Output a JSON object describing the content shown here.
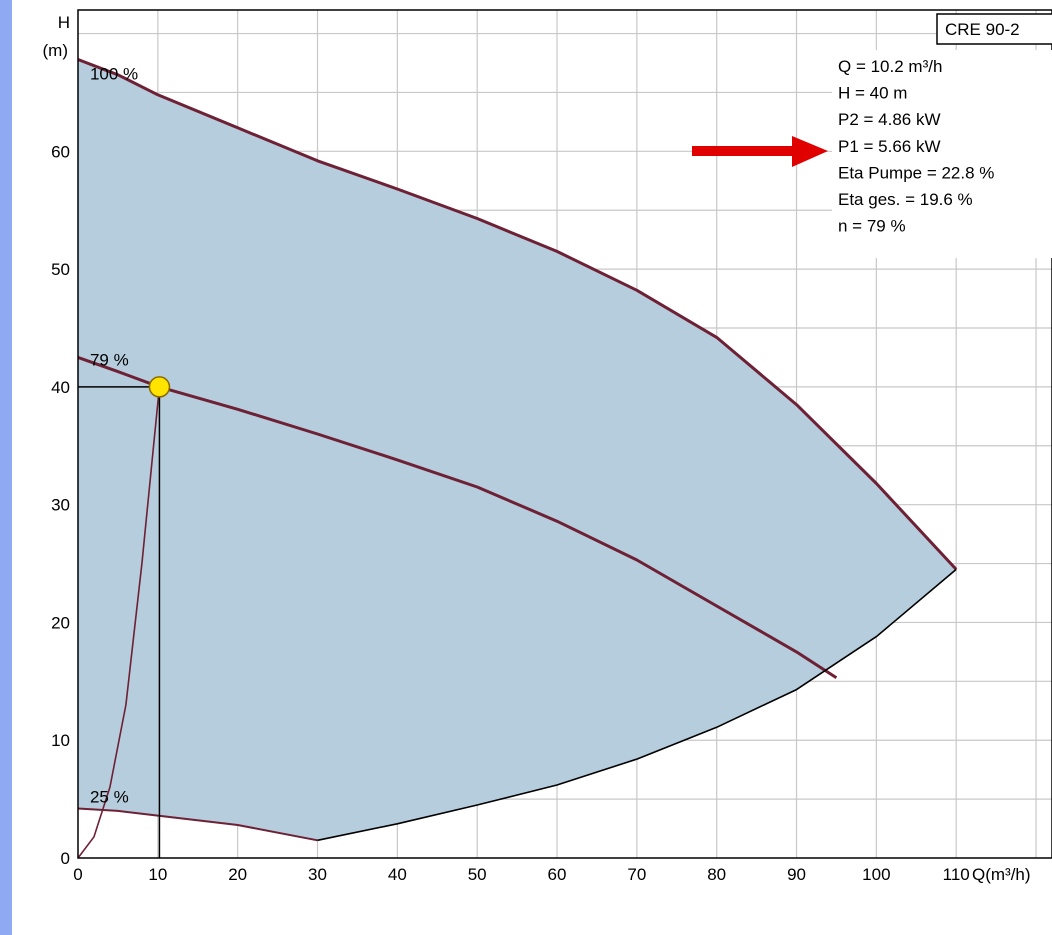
{
  "chart_data": {
    "type": "line",
    "title": "CRE 90-2",
    "ylabel_line1": "H",
    "ylabel_line2": "(m)",
    "xlabel": "Q(m³/h)",
    "xlim": [
      0,
      122
    ],
    "ylim": [
      0,
      72
    ],
    "x_ticks": [
      "0",
      "10",
      "20",
      "30",
      "40",
      "50",
      "60",
      "70",
      "80",
      "90",
      "100",
      "110"
    ],
    "y_ticks": [
      "0",
      "10",
      "20",
      "30",
      "40",
      "50",
      "60"
    ],
    "grid": true,
    "series": [
      {
        "name": "100 %",
        "x": [
          0,
          5,
          10,
          20,
          30,
          40,
          50,
          60,
          70,
          80,
          90,
          100,
          110
        ],
        "y": [
          67.8,
          66.5,
          64.8,
          62.0,
          59.2,
          56.8,
          54.3,
          51.5,
          48.2,
          44.2,
          38.5,
          31.8,
          24.5
        ]
      },
      {
        "name": "79 %",
        "x": [
          0,
          5,
          10.2,
          20,
          30,
          40,
          50,
          60,
          70,
          80,
          90,
          95
        ],
        "y": [
          42.5,
          41.3,
          40,
          38.1,
          36.0,
          33.8,
          31.5,
          28.6,
          25.3,
          21.4,
          17.5,
          15.3
        ]
      },
      {
        "name": "25 %",
        "x": [
          0,
          5,
          10,
          20,
          30
        ],
        "y": [
          4.2,
          4.0,
          3.6,
          2.8,
          1.5
        ]
      },
      {
        "name": "",
        "x": [
          30,
          40,
          50,
          60,
          70,
          80,
          90,
          100,
          110
        ],
        "y": [
          1.5,
          2.9,
          4.5,
          6.2,
          8.4,
          11.1,
          14.3,
          18.8,
          24.5
        ]
      },
      {
        "name": "",
        "x": [
          0,
          2,
          4,
          6,
          8,
          10.2
        ],
        "y": [
          0,
          1.8,
          6.0,
          13.0,
          25.0,
          40
        ]
      }
    ],
    "operating_point": {
      "x": 10.2,
      "y": 40
    },
    "info_lines": [
      "Q = 10.2 m³/h",
      "H = 40 m",
      "P2 = 4.86 kW",
      "P1 = 5.66 kW",
      "Eta Pumpe = 22.8 %",
      "Eta ges. = 19.6 %",
      "n = 79 %"
    ],
    "colors": {
      "fill": "#b5cddc",
      "curve": "#6e2035",
      "grid": "#c8c8c8",
      "point": "#ffe400",
      "arrow": "#e00000"
    }
  }
}
